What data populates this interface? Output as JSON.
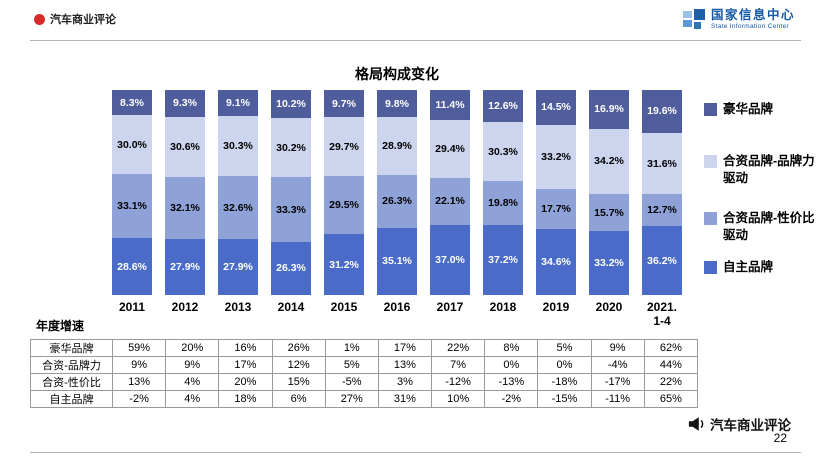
{
  "header": {
    "left_brand": "汽车商业评论",
    "logo_cn": "国家信息中心",
    "logo_en": "State Information Center"
  },
  "chart_data": {
    "type": "bar",
    "stacked": true,
    "percent_stacked": true,
    "title": "格局构成变化",
    "unit": "%",
    "legend_position": "right",
    "grid": false,
    "categories": [
      "2011",
      "2012",
      "2013",
      "2014",
      "2015",
      "2016",
      "2017",
      "2018",
      "2019",
      "2020",
      "2021.\n1-4"
    ],
    "series": [
      {
        "key": "luxury",
        "name": "豪华品牌",
        "color": "#4f5d9c",
        "text_color": "#ffffff",
        "values": [
          8.3,
          9.3,
          9.1,
          10.2,
          9.7,
          9.8,
          11.4,
          12.6,
          14.5,
          16.9,
          19.6
        ]
      },
      {
        "key": "jv-brand",
        "name": "合资品牌-品牌力驱动",
        "color": "#ccd4ee",
        "text_color": "#000000",
        "values": [
          30.0,
          30.6,
          30.3,
          30.2,
          29.7,
          28.9,
          29.4,
          30.3,
          33.2,
          34.2,
          31.6
        ]
      },
      {
        "key": "jv-value",
        "name": "合资品牌-性价比驱动",
        "color": "#8fa2d8",
        "text_color": "#000000",
        "values": [
          33.1,
          32.1,
          32.6,
          33.3,
          29.5,
          26.3,
          22.1,
          19.8,
          17.7,
          15.7,
          12.7
        ]
      },
      {
        "key": "domestic",
        "name": "自主品牌",
        "color": "#4a6cc8",
        "text_color": "#ffffff",
        "values": [
          28.6,
          27.9,
          27.9,
          26.3,
          31.2,
          35.1,
          37.0,
          37.2,
          34.6,
          33.2,
          36.2
        ]
      }
    ]
  },
  "growth_table": {
    "title": "年度增速",
    "rows": [
      {
        "label": "豪华品牌",
        "values": [
          "59%",
          "20%",
          "16%",
          "26%",
          "1%",
          "17%",
          "22%",
          "8%",
          "5%",
          "9%",
          "62%"
        ]
      },
      {
        "label": "合资-品牌力",
        "values": [
          "9%",
          "9%",
          "17%",
          "12%",
          "5%",
          "13%",
          "7%",
          "0%",
          "0%",
          "-4%",
          "44%"
        ]
      },
      {
        "label": "合资-性价比",
        "values": [
          "13%",
          "4%",
          "20%",
          "15%",
          "-5%",
          "3%",
          "-12%",
          "-13%",
          "-18%",
          "-17%",
          "22%"
        ]
      },
      {
        "label": "自主品牌",
        "values": [
          "-2%",
          "4%",
          "18%",
          "6%",
          "27%",
          "31%",
          "10%",
          "-2%",
          "-15%",
          "-11%",
          "65%"
        ]
      }
    ]
  },
  "footer": {
    "brand": "汽车商业评论",
    "page_number": "22"
  }
}
